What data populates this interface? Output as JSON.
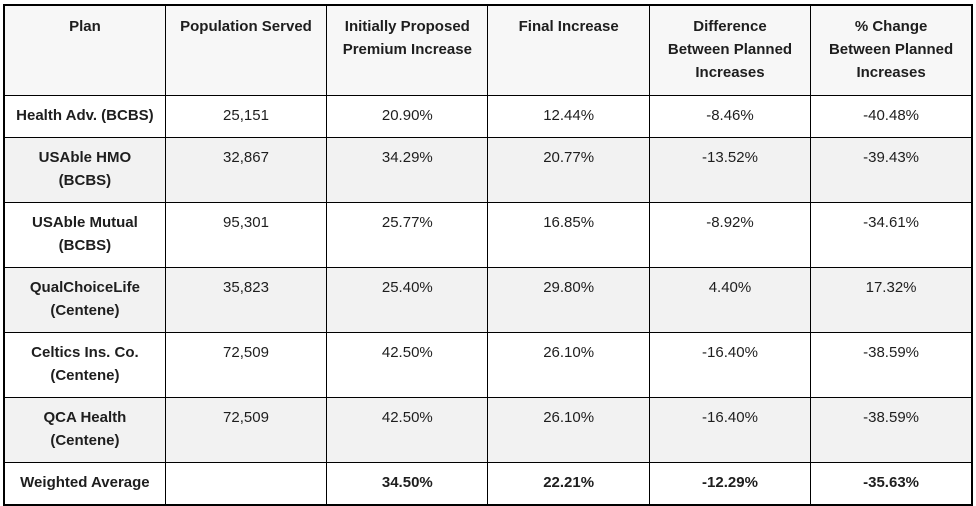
{
  "chart_data": {
    "type": "table",
    "columns": [
      "Plan",
      "Population Served",
      "Initially Proposed Premium Increase",
      "Final Increase",
      "Difference Between Planned Increases",
      "% Change Between Planned Increases"
    ],
    "rows": [
      [
        "Health Adv. (BCBS)",
        "25,151",
        "20.90%",
        "12.44%",
        "-8.46%",
        "-40.48%"
      ],
      [
        "USAble HMO (BCBS)",
        "32,867",
        "34.29%",
        "20.77%",
        "-13.52%",
        "-39.43%"
      ],
      [
        "USAble Mutual (BCBS)",
        "95,301",
        "25.77%",
        "16.85%",
        "-8.92%",
        "-34.61%"
      ],
      [
        "QualChoiceLife (Centene)",
        "35,823",
        "25.40%",
        "29.80%",
        "4.40%",
        "17.32%"
      ],
      [
        "Celtics Ins. Co. (Centene)",
        "72,509",
        "42.50%",
        "26.10%",
        "-16.40%",
        "-38.59%"
      ],
      [
        "QCA Health (Centene)",
        "72,509",
        "42.50%",
        "26.10%",
        "-16.40%",
        "-38.59%"
      ],
      [
        "Weighted Average",
        "",
        "34.50%",
        "22.21%",
        "-12.29%",
        "-35.63%"
      ]
    ]
  },
  "display": {
    "header_lines": [
      [
        "Plan"
      ],
      [
        "Population Served"
      ],
      [
        "Initially Proposed",
        "Premium Increase"
      ],
      [
        "Final Increase"
      ],
      [
        "Difference",
        "Between Planned",
        "Increases"
      ],
      [
        "% Change",
        "Between Planned",
        "Increases"
      ]
    ],
    "plan_lines": [
      {
        "line1": "Health Adv. (BCBS)",
        "line2": ""
      },
      {
        "line1": "USAble HMO",
        "line2": "(BCBS)"
      },
      {
        "line1": "USAble Mutual",
        "line2": "(BCBS)"
      },
      {
        "line1": "QualChoiceLife",
        "line2": "(Centene)"
      },
      {
        "line1": "Celtics Ins. Co.",
        "line2": "(Centene)"
      },
      {
        "line1": "QCA Health",
        "line2": "(Centene)"
      },
      {
        "line1": "Weighted Average",
        "line2": ""
      }
    ]
  },
  "colors": {
    "border": "#000000",
    "header_bg": "#f7f7f7",
    "stripe_bg": "#f2f2f2",
    "row_bg": "#ffffff",
    "text": "#1e1e1e"
  }
}
